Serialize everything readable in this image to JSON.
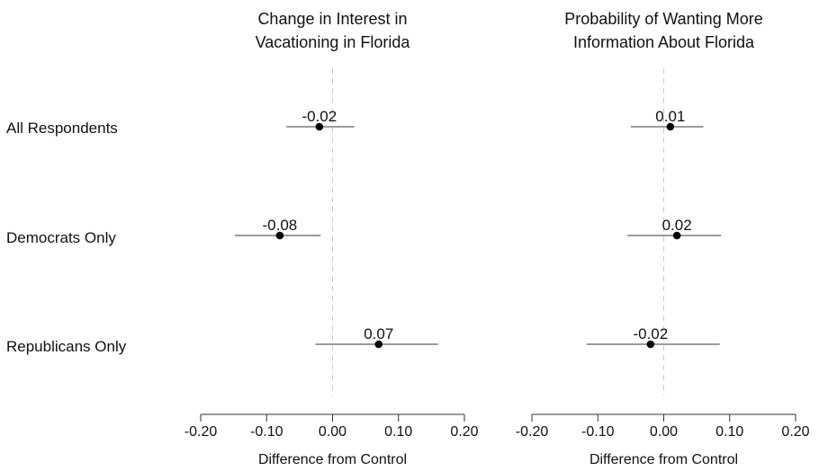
{
  "rows": [
    "All Respondents",
    "Democrats Only",
    "Republicans Only"
  ],
  "chart_data": [
    {
      "type": "scatter",
      "title_lines": [
        "Change in Interest in",
        "Vacationing in Florida"
      ],
      "xlabel": "Difference from Control",
      "xlim": [
        -0.2,
        0.2
      ],
      "xticks": [
        -0.2,
        -0.1,
        0.0,
        0.1,
        0.2
      ],
      "xtick_labels": [
        "-0.20",
        "-0.10",
        "0.00",
        "0.10",
        "0.20"
      ],
      "zero_reference_line": true,
      "points": [
        {
          "row": "All Respondents",
          "estimate": -0.02,
          "label": "-0.02",
          "ci": [
            -0.07,
            0.033
          ]
        },
        {
          "row": "Democrats Only",
          "estimate": -0.08,
          "label": "-0.08",
          "ci": [
            -0.148,
            -0.018
          ]
        },
        {
          "row": "Republicans Only",
          "estimate": 0.07,
          "label": "0.07",
          "ci": [
            -0.026,
            0.16
          ]
        }
      ]
    },
    {
      "type": "scatter",
      "title_lines": [
        "Probability of Wanting More",
        "Information About Florida"
      ],
      "xlabel": "Difference from Control",
      "xlim": [
        -0.2,
        0.2
      ],
      "xticks": [
        -0.2,
        -0.1,
        0.0,
        0.1,
        0.2
      ],
      "xtick_labels": [
        "-0.20",
        "-0.10",
        "0.00",
        "0.10",
        "0.20"
      ],
      "zero_reference_line": true,
      "points": [
        {
          "row": "All Respondents",
          "estimate": 0.01,
          "label": "0.01",
          "ci": [
            -0.05,
            0.06
          ]
        },
        {
          "row": "Democrats Only",
          "estimate": 0.02,
          "label": "0.02",
          "ci": [
            -0.055,
            0.087
          ]
        },
        {
          "row": "Republicans Only",
          "estimate": -0.02,
          "label": "-0.02",
          "ci": [
            -0.117,
            0.085
          ]
        }
      ]
    }
  ],
  "colors": {
    "point": "#000000",
    "ci_line": "#7a7a7a",
    "axis": "#333333",
    "zero_line": "#cccccc"
  }
}
